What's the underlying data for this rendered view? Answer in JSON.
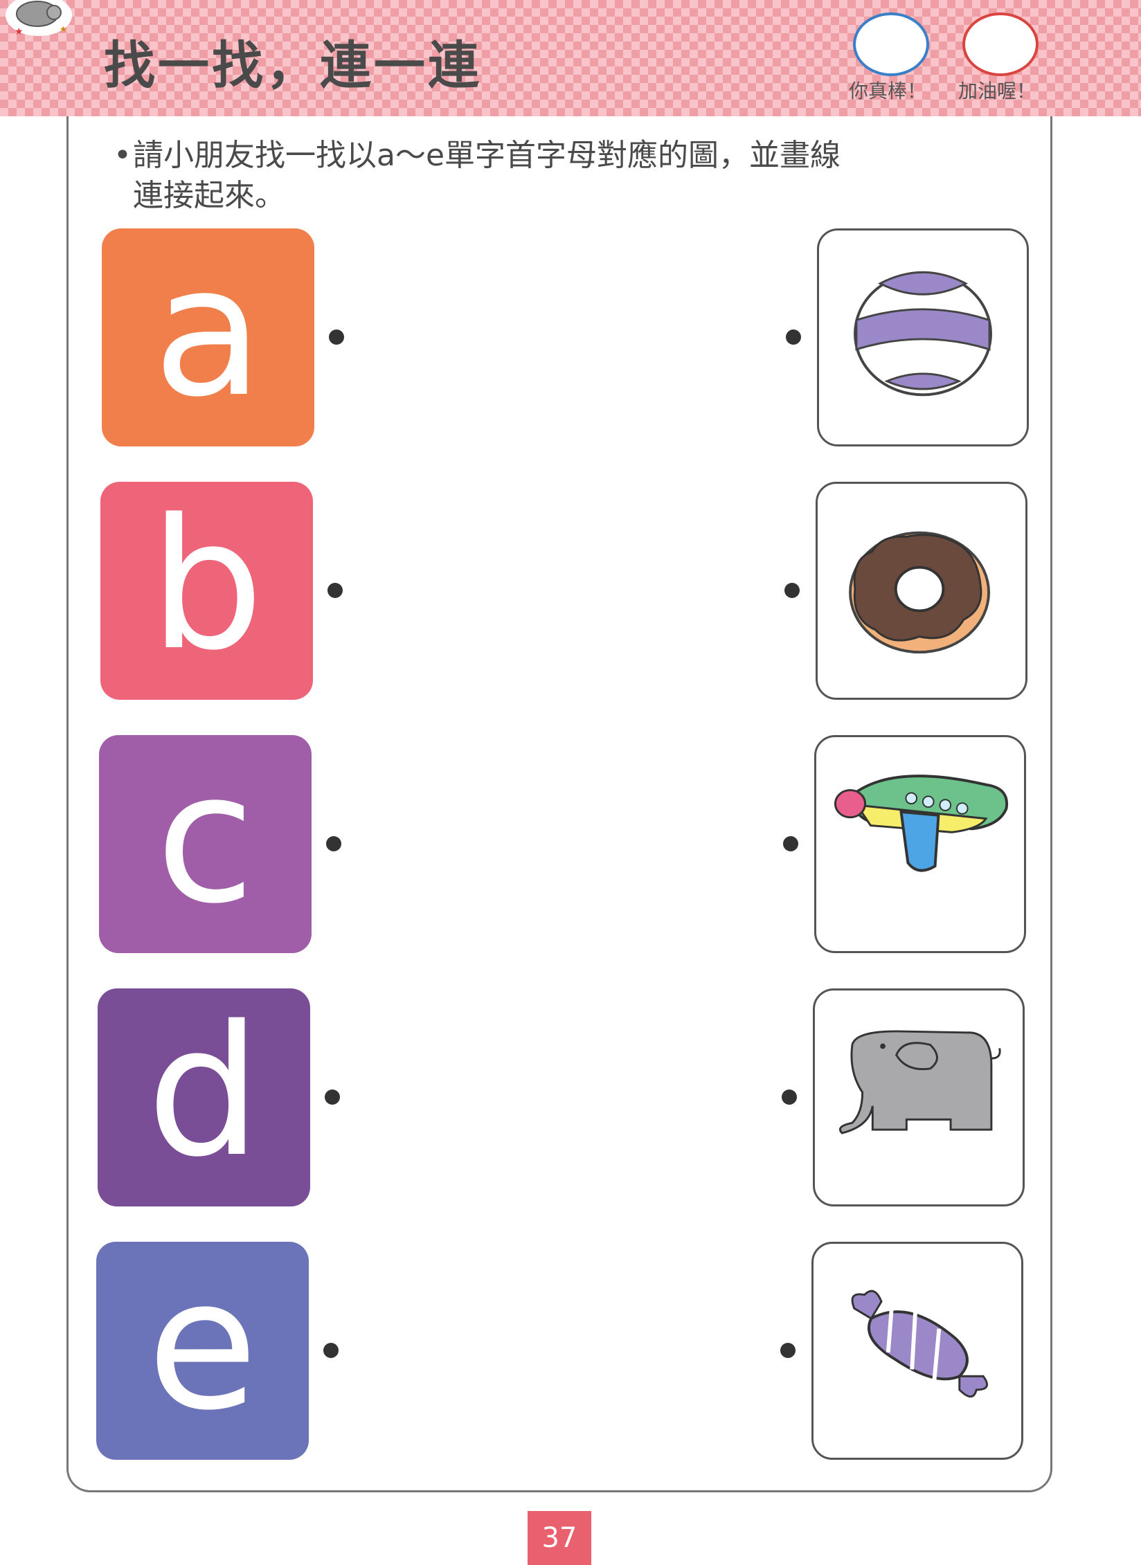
{
  "header": {
    "title": "找一找，連一連",
    "badges": [
      {
        "label": "你真棒！",
        "color": "#3a7fc8"
      },
      {
        "label": "加油喔！",
        "color": "#d9443e"
      }
    ]
  },
  "instruction": {
    "bullet": "•",
    "line1": "請小朋友找一找以a～e單字首字母對應的圖，並畫線",
    "line2": "連接起來。"
  },
  "letters": [
    {
      "letter": "a",
      "color": "#f07f4b"
    },
    {
      "letter": "b",
      "color": "#ee6579"
    },
    {
      "letter": "c",
      "color": "#a05da8"
    },
    {
      "letter": "d",
      "color": "#7a4d97"
    },
    {
      "letter": "e",
      "color": "#6b73b9"
    }
  ],
  "pictures": [
    "ball-icon",
    "donut-icon",
    "airplane-icon",
    "elephant-icon",
    "candy-icon"
  ],
  "page_number": "37"
}
